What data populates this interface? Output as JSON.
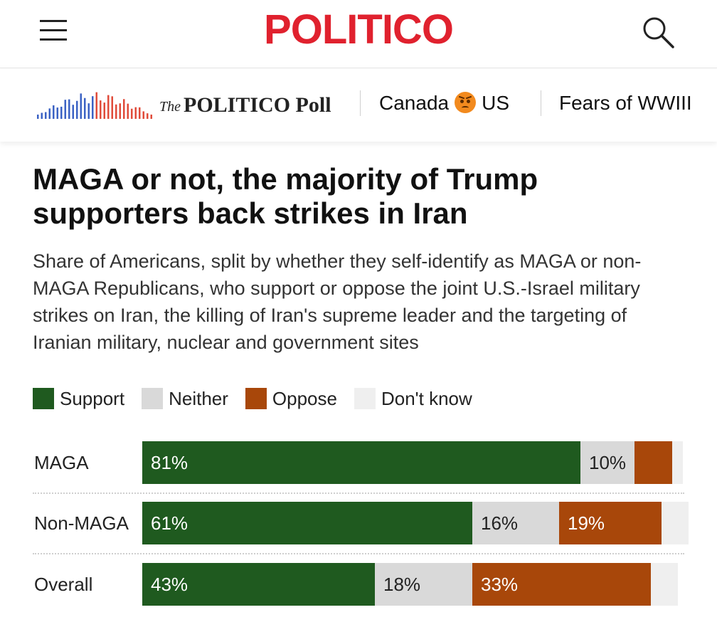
{
  "header": {
    "logo_text": "POLITICO",
    "menu_icon": "hamburger-menu-icon",
    "search_icon": "search-icon",
    "brand_color": "#e0212e"
  },
  "subnav": {
    "poll_the": "The",
    "poll_name": "POLITICO Poll",
    "link_canada_left": "Canada",
    "link_canada_emoji": "angry-face-icon",
    "link_canada_right": "US",
    "link_wwiii": "Fears of WWIII"
  },
  "article": {
    "headline": "MAGA or not, the majority of Trump supporters back strikes in Iran",
    "subhead": "Share of Americans, split by whether they self-identify as MAGA or non-MAGA Republicans, who support or oppose the joint U.S.-Israel military strikes on Iran, the killing of Iran's supreme leader and the targeting of Iranian military, nuclear and government sites"
  },
  "chart_data": {
    "type": "bar",
    "orientation": "horizontal",
    "stacked": true,
    "title": "MAGA or not, the majority of Trump supporters back strikes in Iran",
    "categories": [
      "MAGA",
      "Non-MAGA",
      "Overall"
    ],
    "series": [
      {
        "name": "Support",
        "color": "#1f5a1f",
        "text_color": "#ffffff",
        "values": [
          81,
          61,
          43
        ],
        "labels": [
          "81%",
          "61%",
          "43%"
        ]
      },
      {
        "name": "Neither",
        "color": "#d9d9d9",
        "text_color": "#222222",
        "values": [
          10,
          16,
          18
        ],
        "labels": [
          "10%",
          "16%",
          "18%"
        ]
      },
      {
        "name": "Oppose",
        "color": "#a8470a",
        "text_color": "#ffffff",
        "values": [
          7,
          19,
          33
        ],
        "labels": [
          "",
          "19%",
          "33%"
        ]
      },
      {
        "name": "Don't know",
        "color": "#efefef",
        "text_color": "#222222",
        "values": [
          2,
          5,
          5
        ],
        "labels": [
          "",
          "",
          ""
        ]
      }
    ],
    "xlim": [
      0,
      100
    ],
    "legend_position": "top-left"
  }
}
